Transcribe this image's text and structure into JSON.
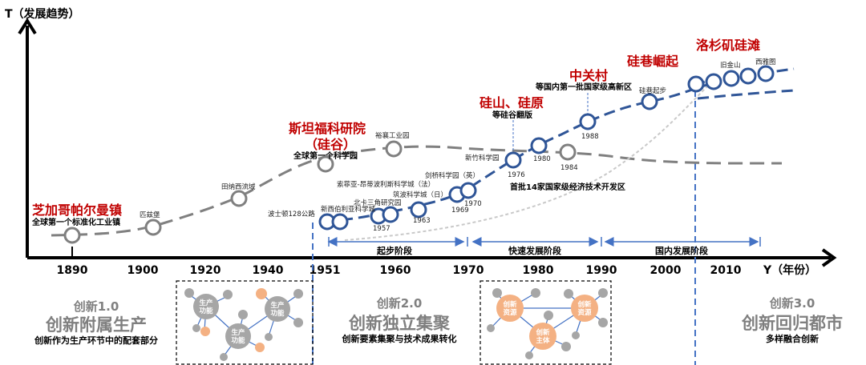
{
  "axes": {
    "y_label": "T（发展趋势）",
    "x_label": "Y（年份）",
    "ticks": [
      "1890",
      "1900",
      "1920",
      "1940",
      "1951",
      "1960",
      "1970",
      "1980",
      "1990",
      "2000",
      "2010"
    ]
  },
  "phases": [
    {
      "label": "起步阶段"
    },
    {
      "label": "快速发展阶段"
    },
    {
      "label": "国内发展阶段"
    }
  ],
  "headlines": [
    {
      "text": "芝加哥帕尔曼镇",
      "sub": "全球第一个标准化工业镇"
    },
    {
      "text": "斯坦福科研院",
      "text2": "（硅谷）",
      "sub": "全球第一个科学园"
    },
    {
      "text": "硅山、硅原",
      "sub": "等硅谷翻版"
    },
    {
      "text": "中关村",
      "sub": "等国内第一批国家级高新区"
    },
    {
      "text": "硅巷崛起"
    },
    {
      "text": "洛杉矶硅滩"
    }
  ],
  "points": {
    "p_pilsen": "匹兹堡",
    "p_tennessee": "田纳西流域",
    "p_yuxiang": "裕襄工业园",
    "p_boston": "波士顿128公路",
    "p_newjersey": "新西伯利亚科学城",
    "p_research_triangle": "北卡三角研究园",
    "p_1957": "1957",
    "p_tsukuba": "筑波科学城（日）",
    "p_1963": "1963",
    "p_sophia": "索菲亚-昂蒂波利斯科学城（法）",
    "p_cambridge": "剑桥科学园（英）",
    "p_1969": "1969",
    "p_1970": "1970",
    "p_hsinchu": "新竹科学园",
    "p_1976": "1976",
    "p_1980": "1980",
    "p_1984": "1984",
    "p_1988": "1988",
    "p_first14": "首批14家国家级经济技术开发区",
    "p_silicon_alley": "硅巷起步",
    "p_sf": "旧金山",
    "p_seattle": "西雅图"
  },
  "bottom": {
    "b1": {
      "version": "创新1.0",
      "title": "创新附属生产",
      "desc": "创新作为生产环节中的配套部分"
    },
    "b2": {
      "version": "创新2.0",
      "title": "创新独立集聚",
      "desc": "创新要素集聚与技术成果转化"
    },
    "b3": {
      "version": "创新3.0",
      "title": "创新回归都市",
      "desc": "多样融合创新"
    }
  },
  "network1": {
    "n1": "生产功能",
    "n2": "生产功能",
    "n3": "生产功能"
  },
  "network2": {
    "n1": "创新资源",
    "n2": "创新资源",
    "n3": "创新主体"
  },
  "colors": {
    "gray": "#7f7f7f",
    "blue": "#2f5597",
    "red": "#c00000",
    "orange": "#f4b183",
    "lightblue": "#4472c4"
  }
}
